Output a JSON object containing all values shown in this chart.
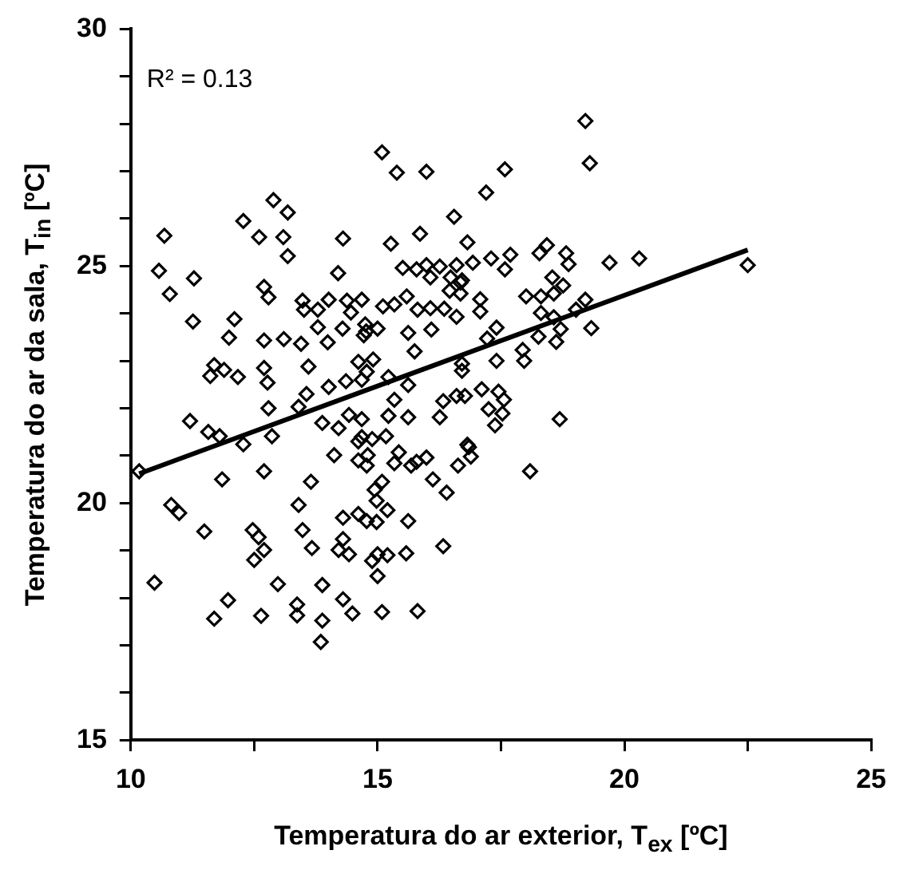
{
  "chart_data": {
    "type": "scatter",
    "xlabel": "Temperatura do ar exterior, T$_{ex}$ [ºC]",
    "ylabel": "Temperatura do ar da sala, T$_{in}$ [ºC]",
    "annotations": [
      "R² = 0.13"
    ],
    "xlim": [
      10,
      25
    ],
    "ylim": [
      15,
      30
    ],
    "xticks": [
      10,
      {
        "value": 12.5,
        "label": null
      },
      15,
      {
        "value": 17.5,
        "label": null
      },
      20,
      {
        "value": 22.5,
        "label": null
      },
      25
    ],
    "yticks": [
      15,
      {
        "value": 16,
        "label": null
      },
      {
        "value": 17,
        "label": null
      },
      {
        "value": 18,
        "label": null
      },
      {
        "value": 19,
        "label": null
      },
      20,
      {
        "value": 21,
        "label": null
      },
      {
        "value": 22,
        "label": null
      },
      {
        "value": 23,
        "label": null
      },
      {
        "value": 24,
        "label": null
      },
      25,
      {
        "value": 26,
        "label": null
      },
      {
        "value": 27,
        "label": null
      },
      {
        "value": 28,
        "label": null
      },
      {
        "value": 29,
        "label": null
      },
      30
    ],
    "legend": false,
    "series": [
      {
        "marker": "diamond",
        "color": "#000000",
        "x": [
          15.09,
          15.39,
          15.99,
          17.58,
          17.2,
          12.89,
          13.18,
          12.28,
          12.6,
          13.09,
          13.18,
          10.68,
          10.57,
          10.79,
          11.28,
          11.26,
          12.1,
          11.99,
          12.7,
          12.79,
          12.7,
          13.1,
          13.45,
          13.6,
          12.7,
          12.77,
          11.69,
          11.89,
          11.61,
          12.17,
          12.79,
          13.4,
          14.3,
          15.27,
          15.86,
          14.2,
          16.55,
          16.82,
          17.3,
          16.93,
          15.51,
          15.79,
          15.99,
          16.26,
          16.07,
          16.6,
          16.48,
          16.68,
          16.46,
          16.68,
          17.08,
          17.08,
          16.6,
          17.41,
          13.48,
          13.51,
          13.79,
          14.01,
          14.38,
          14.46,
          14.68,
          15.11,
          15.34,
          15.59,
          15.81,
          16.07,
          16.35,
          13.79,
          14.29,
          13.99,
          14.75,
          14.77,
          15.0,
          14.72,
          15.62,
          16.09,
          15.75,
          14.61,
          14.91,
          14.78,
          14.36,
          14.01,
          14.68,
          15.22,
          15.62,
          15.34,
          13.56,
          16.33,
          16.6,
          16.77,
          17.11,
          17.41,
          17.22,
          16.71,
          16.71,
          19.21,
          19.3,
          17.69,
          17.58,
          18.28,
          18.43,
          18.82,
          18.87,
          19.7,
          20.3,
          22.5,
          16.71,
          18.01,
          18.31,
          18.57,
          18.54,
          18.76,
          19.21,
          19.02,
          18.31,
          18.57,
          18.71,
          19.33,
          18.26,
          18.62,
          17.94,
          17.97,
          17.45,
          17.56,
          17.25,
          11.2,
          11.57,
          11.8,
          12.28,
          12.86,
          10.17,
          11.85,
          12.7,
          13.88,
          14.21,
          14.42,
          14.68,
          15.22,
          15.62,
          16.26,
          17.38,
          17.53,
          14.61,
          14.68,
          14.89,
          15.17,
          14.12,
          14.61,
          14.78,
          14.8,
          15.43,
          15.34,
          15.68,
          15.79,
          15.99,
          16.12,
          16.4,
          16.63,
          16.85,
          16.89,
          13.65,
          14.94,
          15.09,
          14.98,
          15.2,
          13.4,
          14.3,
          14.61,
          14.78,
          14.98,
          15.62,
          11.49,
          10.82,
          10.98,
          12.47,
          12.59,
          12.7,
          12.5,
          13.48,
          13.67,
          14.3,
          14.21,
          14.42,
          14.89,
          15.0,
          15.2,
          15.0,
          15.58,
          16.33,
          10.48,
          12.98,
          13.88,
          14.3,
          14.49,
          15.09,
          15.81,
          13.37,
          13.37,
          13.88,
          13.85,
          12.64,
          11.97,
          11.69,
          16.82,
          18.69,
          18.09
        ],
        "values": [
          27.4,
          26.97,
          26.99,
          27.04,
          26.55,
          26.39,
          26.13,
          25.95,
          25.61,
          25.61,
          25.21,
          25.64,
          24.9,
          24.41,
          24.74,
          23.83,
          23.88,
          23.49,
          24.56,
          24.34,
          23.43,
          23.46,
          23.36,
          22.88,
          22.85,
          22.54,
          22.91,
          22.81,
          22.68,
          22.66,
          22.0,
          22.03,
          25.58,
          25.47,
          25.68,
          24.85,
          26.04,
          25.5,
          25.16,
          25.07,
          24.96,
          24.93,
          25.02,
          24.99,
          24.76,
          25.02,
          24.76,
          24.65,
          24.48,
          24.42,
          24.3,
          24.04,
          23.93,
          23.7,
          24.27,
          24.08,
          24.08,
          24.29,
          24.27,
          24.02,
          24.29,
          24.15,
          24.19,
          24.36,
          24.08,
          24.11,
          24.1,
          23.71,
          23.68,
          23.39,
          23.77,
          23.62,
          23.68,
          23.54,
          23.59,
          23.66,
          23.2,
          22.98,
          23.03,
          22.77,
          22.57,
          22.45,
          22.6,
          22.66,
          22.49,
          22.18,
          22.3,
          22.15,
          22.26,
          22.26,
          22.4,
          23.0,
          23.47,
          22.79,
          22.94,
          28.06,
          27.17,
          25.24,
          24.93,
          25.27,
          25.44,
          25.27,
          25.04,
          25.07,
          25.16,
          25.02,
          24.7,
          24.36,
          24.36,
          24.42,
          24.76,
          24.59,
          24.29,
          24.08,
          24.01,
          23.92,
          23.67,
          23.69,
          23.51,
          23.4,
          23.23,
          23.0,
          22.35,
          22.18,
          21.98,
          21.73,
          21.5,
          21.41,
          21.24,
          21.41,
          20.67,
          20.5,
          20.67,
          21.69,
          21.58,
          21.86,
          21.77,
          21.84,
          21.81,
          21.81,
          21.64,
          21.89,
          21.3,
          21.39,
          21.35,
          21.41,
          21.01,
          20.9,
          20.79,
          21.01,
          21.07,
          20.84,
          20.79,
          20.87,
          20.96,
          20.5,
          20.22,
          20.79,
          21.18,
          20.98,
          20.45,
          20.28,
          20.45,
          20.05,
          19.85,
          19.96,
          19.69,
          19.77,
          19.62,
          19.6,
          19.62,
          19.4,
          19.96,
          19.79,
          19.43,
          19.28,
          19.01,
          18.8,
          19.43,
          19.05,
          19.24,
          19.01,
          18.92,
          18.78,
          18.92,
          18.9,
          18.46,
          18.94,
          19.09,
          18.32,
          18.29,
          18.27,
          17.97,
          17.67,
          17.7,
          17.72,
          17.86,
          17.63,
          17.52,
          17.07,
          17.62,
          17.95,
          17.56,
          21.23,
          21.77,
          20.67
        ]
      },
      {
        "type": "line",
        "marker": "none",
        "line_style": "solid",
        "color": "#000000",
        "x": [
          10.17,
          22.5
        ],
        "values": [
          20.62,
          25.34
        ]
      }
    ]
  }
}
